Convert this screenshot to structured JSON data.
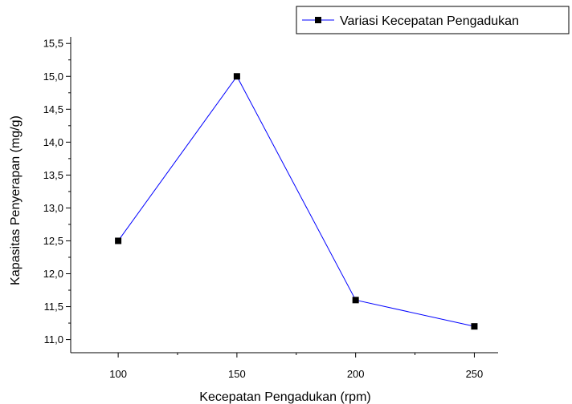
{
  "chart_data": {
    "type": "line",
    "title": "",
    "xlabel": "Kecepatan Pengadukan (rpm)",
    "ylabel": "Kapasitas Penyerapan (mg/g)",
    "x": [
      100,
      150,
      200,
      250
    ],
    "x_ticks": [
      "100",
      "150",
      "200",
      "250"
    ],
    "xlim": [
      80,
      260
    ],
    "ylim": [
      10.8,
      15.6
    ],
    "y_ticks": [
      {
        "value": 11.0,
        "label": "11,0"
      },
      {
        "value": 11.5,
        "label": "11,5"
      },
      {
        "value": 12.0,
        "label": "12,0"
      },
      {
        "value": 12.5,
        "label": "12,5"
      },
      {
        "value": 13.0,
        "label": "13,0"
      },
      {
        "value": 13.5,
        "label": "13,5"
      },
      {
        "value": 14.0,
        "label": "14,0"
      },
      {
        "value": 14.5,
        "label": "14,5"
      },
      {
        "value": 15.0,
        "label": "15,0"
      },
      {
        "value": 15.5,
        "label": "15,5"
      }
    ],
    "series": [
      {
        "name": "Variasi Kecepatan Pengadukan",
        "values": [
          12.5,
          15.0,
          11.6,
          11.2
        ],
        "line_color": "#0000ff",
        "marker": "square",
        "marker_color": "#000000"
      }
    ],
    "grid": false,
    "legend_position": "top-right"
  }
}
